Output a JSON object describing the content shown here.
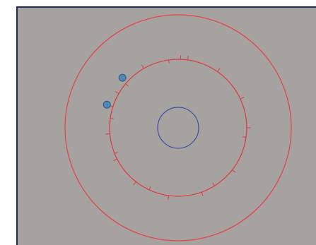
{
  "colors": {
    "background": "#a6a29f",
    "frame": "#1e2a5a",
    "outer_ring": "#e0484e",
    "track_ring": "#d94045",
    "center_circle": "#3c4fa0",
    "dot_fill": "#4f86b8",
    "dot_stroke": "#2f5a80"
  },
  "icons": {
    "player_dot": "circle-dot-icon",
    "center_target": "circle-outline-icon"
  },
  "ring_ticks": {
    "outer_side_angles_deg": [
      -88,
      -82,
      -55,
      -25,
      0,
      38,
      70,
      98,
      128,
      153,
      175,
      198,
      210,
      240
    ],
    "inner_side_angles_deg": [
      8,
      58,
      115,
      158,
      188,
      220,
      262
    ]
  },
  "players": [
    {
      "angle_deg": 198
    },
    {
      "angle_deg": 222
    }
  ]
}
